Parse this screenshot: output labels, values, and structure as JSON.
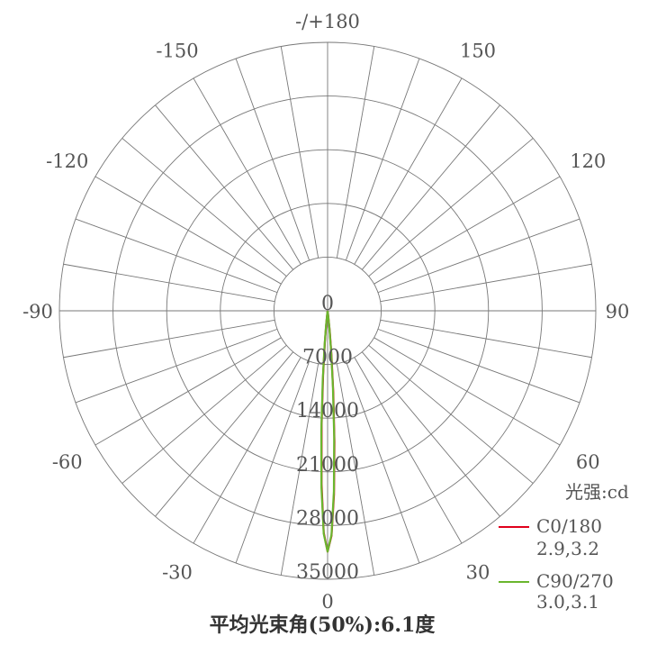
{
  "chart_data": {
    "type": "polar",
    "title": "平均光束角(50%):6.1度",
    "unit_label": "光强:cd",
    "angle_tick_labels": [
      {
        "angle": 180,
        "label": "-/+180"
      },
      {
        "angle": 150,
        "label": "150"
      },
      {
        "angle": 120,
        "label": "120"
      },
      {
        "angle": 90,
        "label": "90"
      },
      {
        "angle": 60,
        "label": "60"
      },
      {
        "angle": 30,
        "label": "30"
      },
      {
        "angle": 0,
        "label": "0"
      },
      {
        "angle": -30,
        "label": "-30"
      },
      {
        "angle": -60,
        "label": "-60"
      },
      {
        "angle": -90,
        "label": "-90"
      },
      {
        "angle": -120,
        "label": "-120"
      },
      {
        "angle": -150,
        "label": "-150"
      }
    ],
    "radial_tick_labels": [
      "0",
      "7000",
      "14000",
      "21000",
      "28000",
      "35000"
    ],
    "radial_ticks": [
      0,
      7000,
      14000,
      21000,
      28000,
      35000
    ],
    "rlim": [
      0,
      35000
    ],
    "angle_grid_step_deg": 10,
    "grid": true,
    "legend_position": "bottom-right",
    "series": [
      {
        "name": "C0/180",
        "sub_label": "2.9,3.2",
        "color": "#e0001b",
        "angles": [
          -10,
          -8,
          -6,
          -5,
          -4,
          -3,
          -2,
          -1,
          0,
          1,
          2,
          3,
          4,
          5,
          6,
          8,
          10
        ],
        "values": [
          0,
          160,
          1620,
          3990,
          8390,
          14950,
          22570,
          28920,
          31400,
          29340,
          23960,
          17080,
          10620,
          5780,
          2740,
          410,
          0
        ]
      },
      {
        "name": "C90/270",
        "sub_label": "3.0,3.1",
        "color": "#6ab62e",
        "angles": [
          -10,
          -8,
          -6,
          -5,
          -4,
          -3,
          -2,
          -1,
          0,
          1,
          2,
          3,
          4,
          5,
          6,
          8,
          10
        ],
        "values": [
          0,
          230,
          1960,
          4580,
          9150,
          15700,
          23090,
          29080,
          31400,
          29200,
          23520,
          16400,
          9900,
          5180,
          2340,
          310,
          0
        ]
      }
    ]
  }
}
